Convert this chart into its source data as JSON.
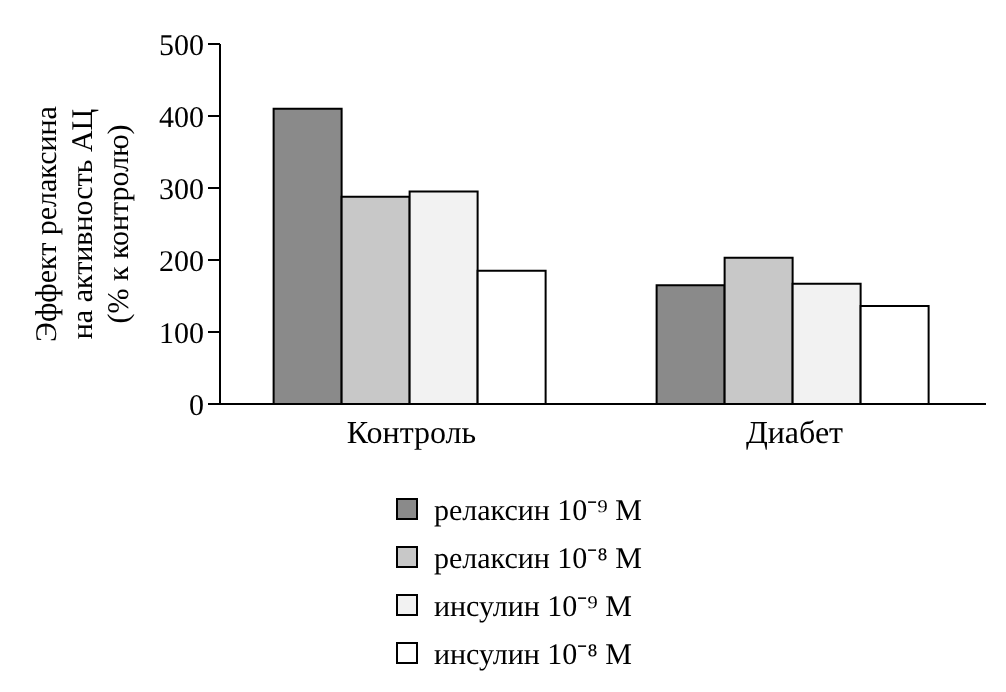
{
  "chart_data": {
    "type": "bar",
    "ylabel": "Эффект релаксина\nна активность АЦ\n(% к контролю)",
    "categories": [
      "Контроль",
      "Диабет"
    ],
    "series": [
      {
        "name": "релаксин 10⁻⁹ M",
        "color": "#8a8a8a",
        "values": [
          410,
          165
        ]
      },
      {
        "name": "релаксин 10⁻⁸ M",
        "color": "#c8c8c8",
        "values": [
          288,
          203
        ]
      },
      {
        "name": "инсулин 10⁻⁹ M",
        "color": "#f2f2f2",
        "values": [
          295,
          167
        ]
      },
      {
        "name": "инсулин 10⁻⁸ M",
        "color": "#ffffff",
        "values": [
          185,
          136
        ]
      }
    ],
    "ylim": [
      0,
      500
    ],
    "yticks": [
      0,
      100,
      200,
      300,
      400,
      500
    ],
    "grid": false,
    "legend": "bottom"
  }
}
